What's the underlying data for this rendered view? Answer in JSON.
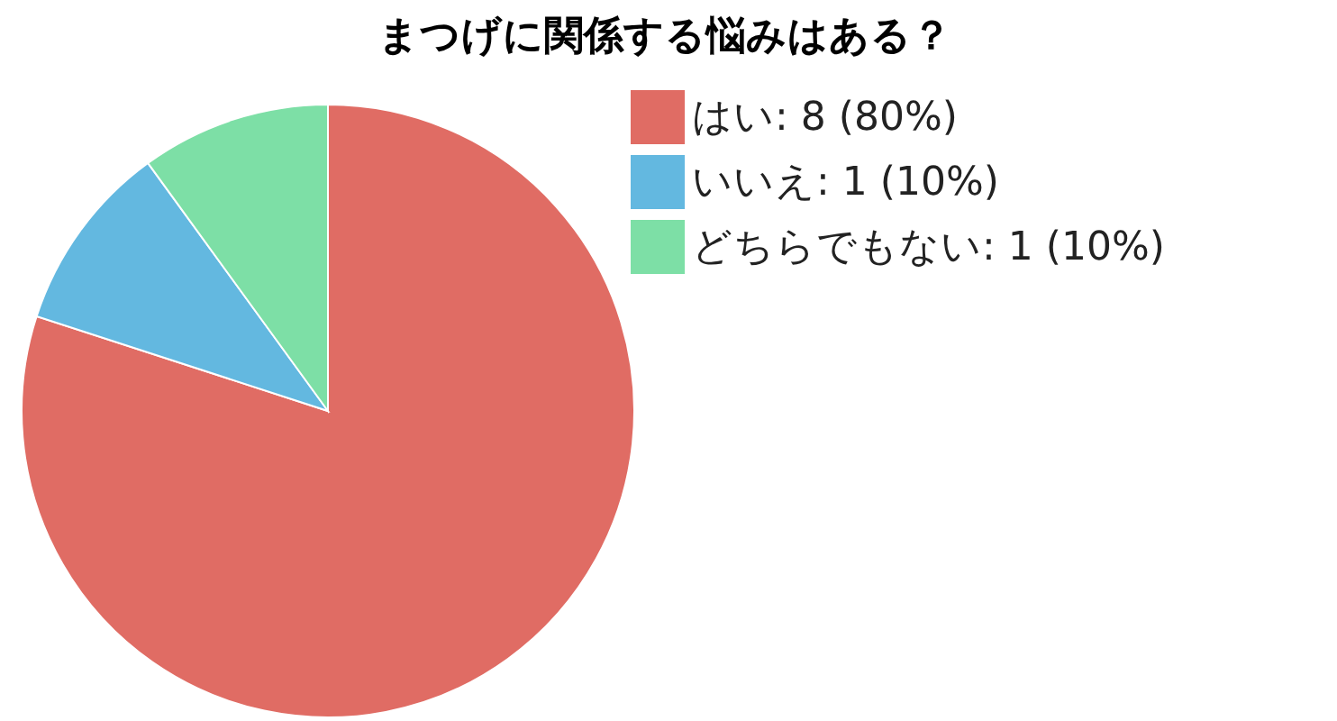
{
  "chart_data": {
    "type": "pie",
    "title": "まつげに関係する悩みはある？",
    "categories": [
      "はい: 8 (80%)",
      "いいえ: 1 (10%)",
      "どちらでもない: 1 (10%)"
    ],
    "values": [
      8,
      1,
      1
    ],
    "colors": [
      "#e06c64",
      "#63b8e0",
      "#7ddfa6"
    ],
    "legend": "top right"
  }
}
